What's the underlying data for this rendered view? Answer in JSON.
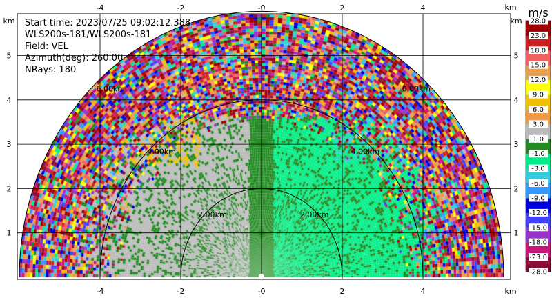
{
  "info": {
    "start_time": "Start time: 2023/07/25 09:02:12.388",
    "instrument": "WLS200s-181/WLS200s-181",
    "field": "Field: VEL",
    "azimuth": "Azimuth(deg): 260.00",
    "nrays": "NRays: 180"
  },
  "chart_data": {
    "type": "heatmap",
    "projection": "RHI / range-height sector",
    "x_unit": "km",
    "y_unit": "km",
    "xlim": [
      -6,
      6
    ],
    "ylim": [
      0,
      5.8
    ],
    "x_ticks": [
      "-4",
      "-2",
      "-0",
      "2",
      "4"
    ],
    "x_tick_values": [
      -4,
      -2,
      0,
      2,
      4
    ],
    "y_ticks": [
      "1",
      "2",
      "3",
      "4",
      "5"
    ],
    "y_tick_values": [
      1,
      2,
      3,
      4,
      5
    ],
    "grid": true,
    "range_rings": [
      {
        "range": 2,
        "label": "2.00km"
      },
      {
        "range": 4,
        "label": "4.00km"
      },
      {
        "range": 6,
        "label": "6.00km"
      }
    ],
    "max_range": 6,
    "colorbar": {
      "unit": "m/s",
      "boundaries": [
        -28.0,
        -23.0,
        -18.0,
        -15.0,
        -12.0,
        -9.0,
        -6.0,
        -3.0,
        -1.0,
        1.0,
        3.0,
        6.0,
        9.0,
        12.0,
        15.0,
        18.0,
        23.0,
        28.0
      ],
      "labels": [
        "-28.0",
        "-23.0",
        "-18.0",
        "-15.0",
        "-12.0",
        "-9.0",
        "-6.0",
        "-3.0",
        "-1.0",
        "1.0",
        "3.0",
        "6.0",
        "9.0",
        "12.0",
        "15.0",
        "18.0",
        "23.0",
        "28.0"
      ],
      "colors": [
        "#8b0a3a",
        "#c7157a",
        "#9933cc",
        "#4040ff",
        "#0000dd",
        "#3399ff",
        "#33ccdd",
        "#00ee88",
        "#228b22",
        "#bbbbbb",
        "#ee9944",
        "#f0c000",
        "#ffff00",
        "#e8a050",
        "#f06060",
        "#cc2020",
        "#a00000"
      ]
    }
  }
}
